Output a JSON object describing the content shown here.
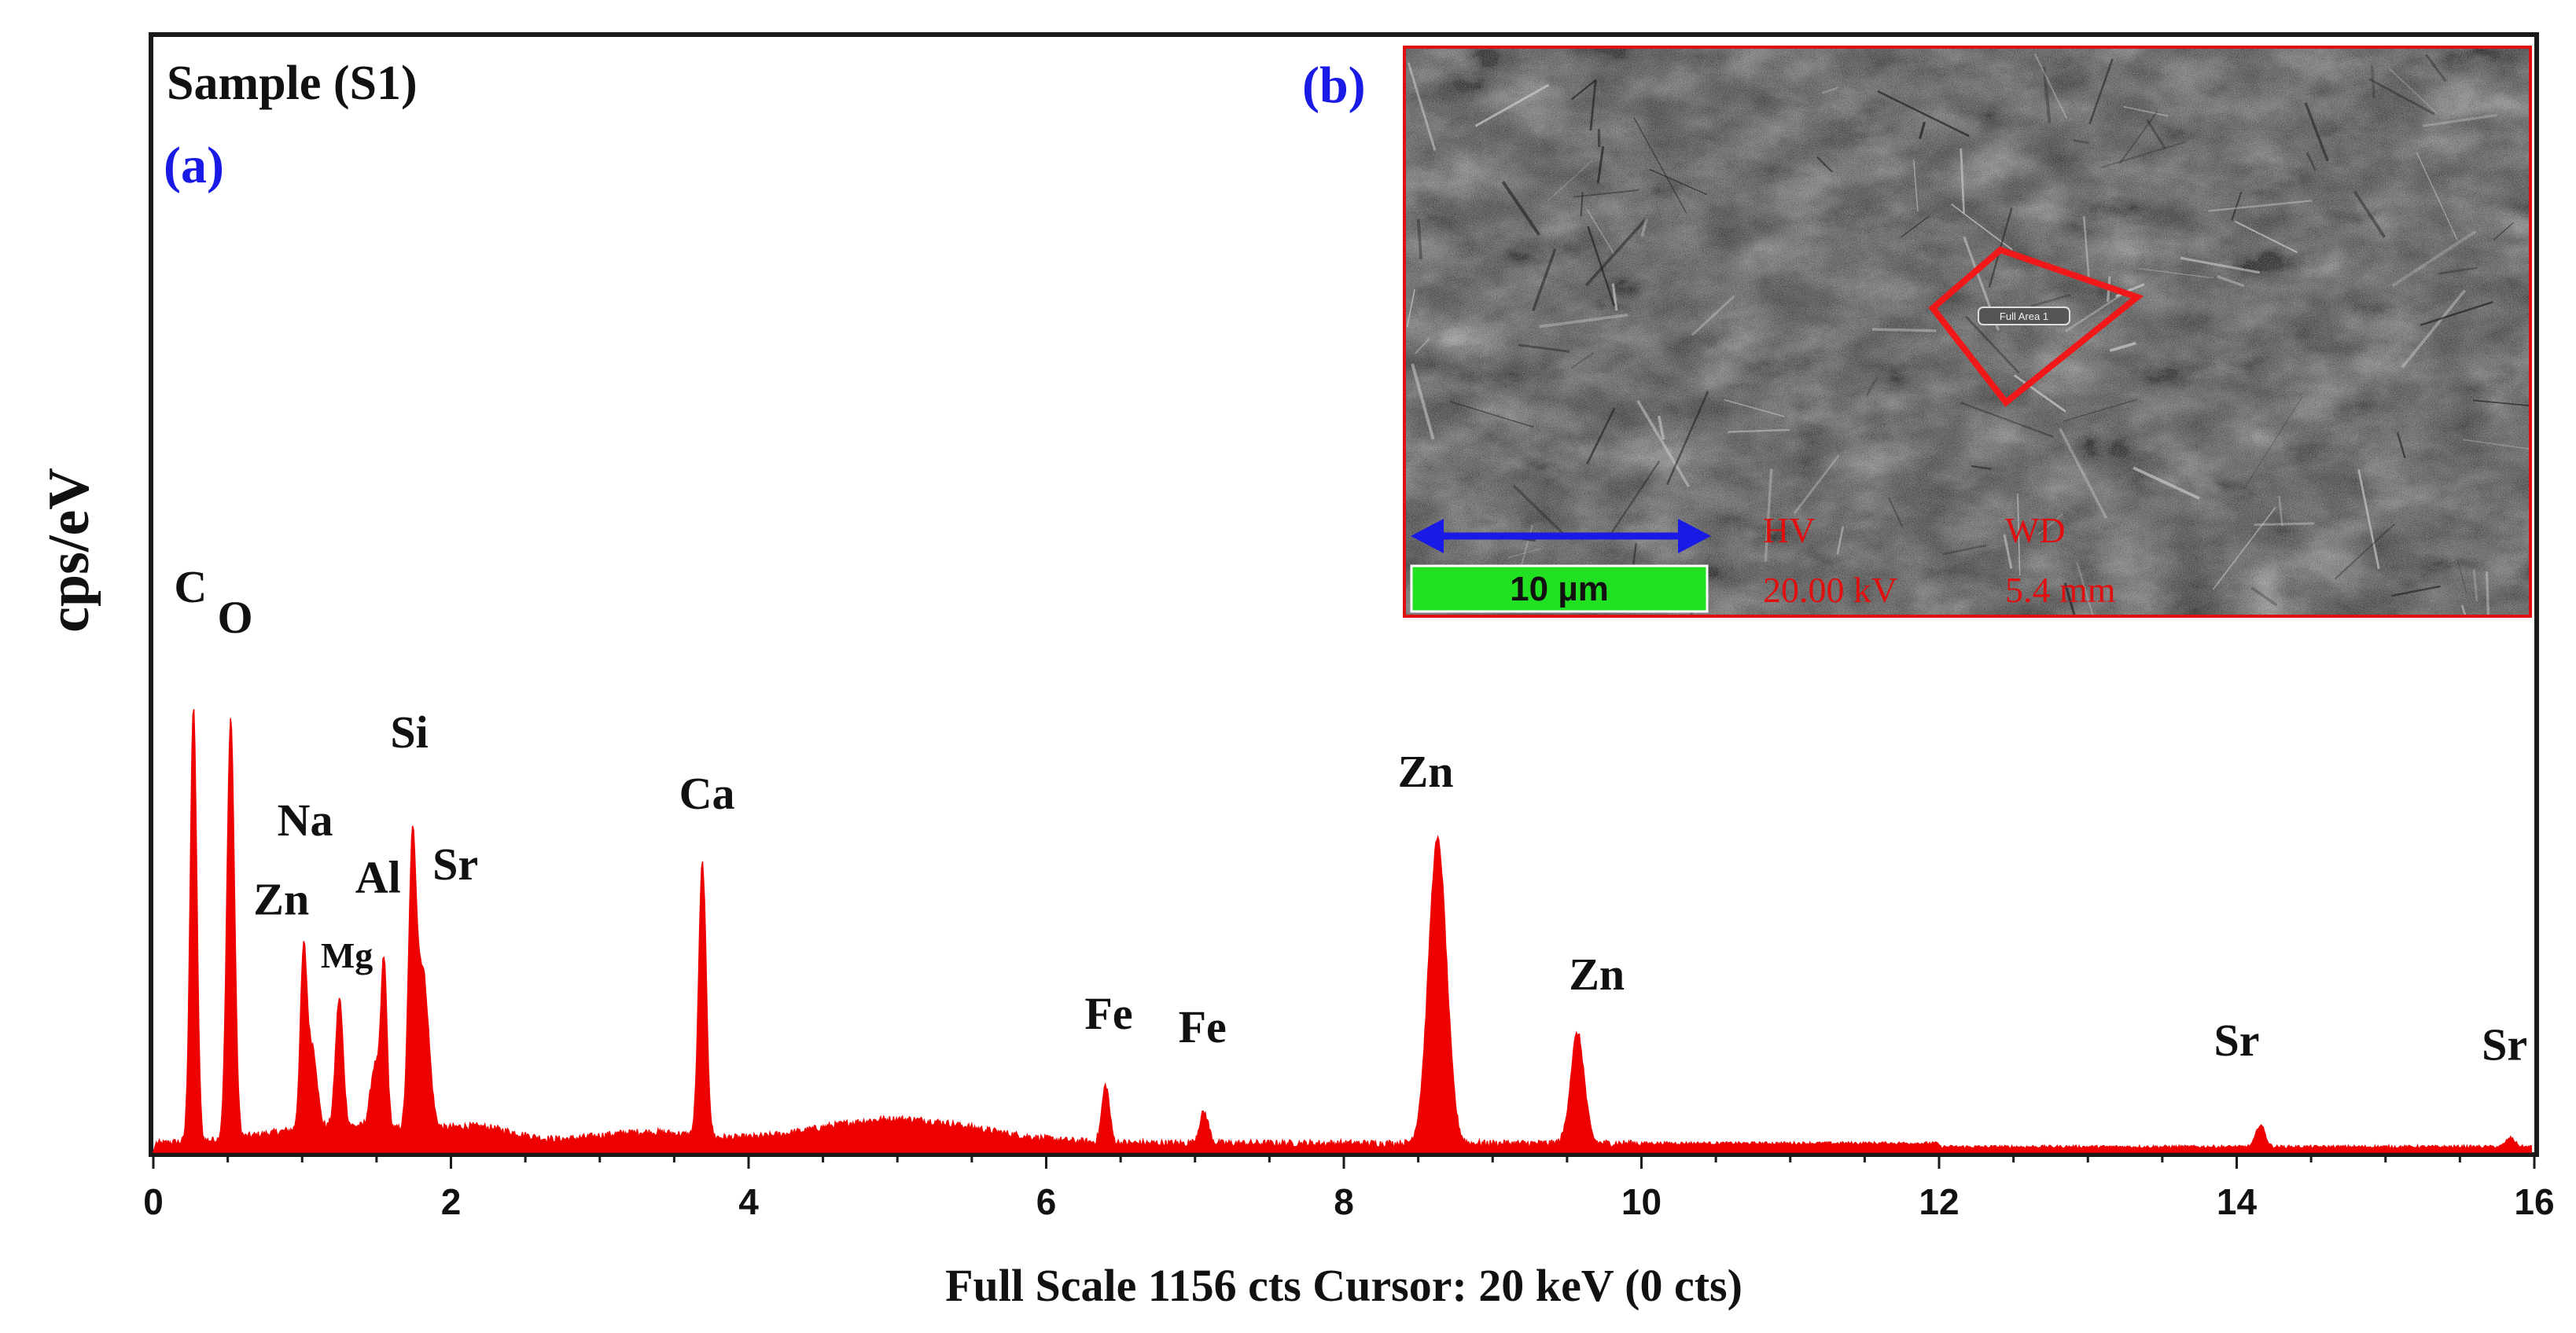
{
  "figure": {
    "sample_label": "Sample (S1)",
    "panel_a_label": "(a)",
    "panel_b_label": "(b)",
    "panel_label_color": "#1a1ae6"
  },
  "chart_data": {
    "type": "area",
    "ylabel": "cps/eV",
    "xlabel": "Full Scale 1156 cts Cursor: 20 keV (0 cts)",
    "xlim": [
      0,
      16
    ],
    "xticks": [
      0,
      2,
      4,
      6,
      8,
      10,
      12,
      14,
      16
    ],
    "ylim": [
      0,
      1
    ],
    "y_units_note": "",
    "grid": false,
    "series_color": "#ee0000",
    "background_color": "#ffffff",
    "baseline": 0.02,
    "noise": 0.012,
    "broad_humps": [
      {
        "center": 5.0,
        "height": 0.055,
        "width": 0.55
      },
      {
        "center": 3.3,
        "height": 0.025,
        "width": 0.35
      },
      {
        "center": 2.2,
        "height": 0.03,
        "width": 0.25
      }
    ],
    "peaks": [
      {
        "element": "C",
        "energy": 0.27,
        "height": 0.985,
        "width": 0.022
      },
      {
        "element": "O",
        "energy": 0.52,
        "height": 0.955,
        "width": 0.025
      },
      {
        "element": "Zn",
        "energy": 1.01,
        "height": 0.395,
        "width": 0.022
      },
      {
        "element": "Na",
        "energy": 1.07,
        "height": 0.18,
        "width": 0.03
      },
      {
        "element": "Mg",
        "energy": 1.25,
        "height": 0.29,
        "width": 0.025
      },
      {
        "element": "Al",
        "energy": 1.49,
        "height": 0.14,
        "width": 0.03
      },
      {
        "element": "Al",
        "energy": 1.55,
        "height": 0.37,
        "width": 0.02
      },
      {
        "element": "Si",
        "energy": 1.74,
        "height": 0.6,
        "width": 0.025
      },
      {
        "element": "Sr",
        "energy": 1.81,
        "height": 0.36,
        "width": 0.04
      },
      {
        "element": "Ca",
        "energy": 3.69,
        "height": 0.62,
        "width": 0.025
      },
      {
        "element": "Fe",
        "energy": 6.4,
        "height": 0.13,
        "width": 0.025
      },
      {
        "element": "Fe",
        "energy": 7.06,
        "height": 0.07,
        "width": 0.03
      },
      {
        "element": "Zn",
        "energy": 8.63,
        "height": 0.69,
        "width": 0.06
      },
      {
        "element": "Zn",
        "energy": 9.57,
        "height": 0.25,
        "width": 0.045
      },
      {
        "element": "Sr",
        "energy": 14.16,
        "height": 0.05,
        "width": 0.03
      },
      {
        "element": "Sr",
        "energy": 15.84,
        "height": 0.02,
        "width": 0.03
      }
    ],
    "peak_labels": [
      {
        "text": "C",
        "energy": 0.25,
        "level": 1.25
      },
      {
        "text": "O",
        "energy": 0.55,
        "level": 1.18
      },
      {
        "text": "Si",
        "energy": 1.72,
        "level": 0.92
      },
      {
        "text": "Na",
        "energy": 1.02,
        "level": 0.72
      },
      {
        "text": "Ca",
        "energy": 3.72,
        "level": 0.78
      },
      {
        "text": "Zn",
        "energy": 0.86,
        "level": 0.54
      },
      {
        "text": "Al",
        "energy": 1.51,
        "level": 0.59
      },
      {
        "text": "Sr",
        "energy": 2.03,
        "level": 0.62
      },
      {
        "text": "Mg",
        "energy": 1.3,
        "level": 0.42,
        "small": true
      },
      {
        "text": "Zn",
        "energy": 8.55,
        "level": 0.83
      },
      {
        "text": "Zn",
        "energy": 9.7,
        "level": 0.37
      },
      {
        "text": "Fe",
        "energy": 6.42,
        "level": 0.28
      },
      {
        "text": "Fe",
        "energy": 7.05,
        "level": 0.25
      },
      {
        "text": "Sr",
        "energy": 14.0,
        "level": 0.22
      },
      {
        "text": "Sr",
        "energy": 15.8,
        "level": 0.21
      }
    ]
  },
  "inset": {
    "description_source": "SEM micrograph",
    "scale_bar_label": "10 µm",
    "hv_label": "HV",
    "hv_value": "20.00 kV",
    "wd_label": "WD",
    "wd_value": "5.4 mm",
    "roi_label": "Full Area 1",
    "frame_color": "#e01010",
    "scale_bar_fill": "#22e022",
    "arrow_color": "#1a1ae6",
    "metadata_color": "#e01010"
  }
}
